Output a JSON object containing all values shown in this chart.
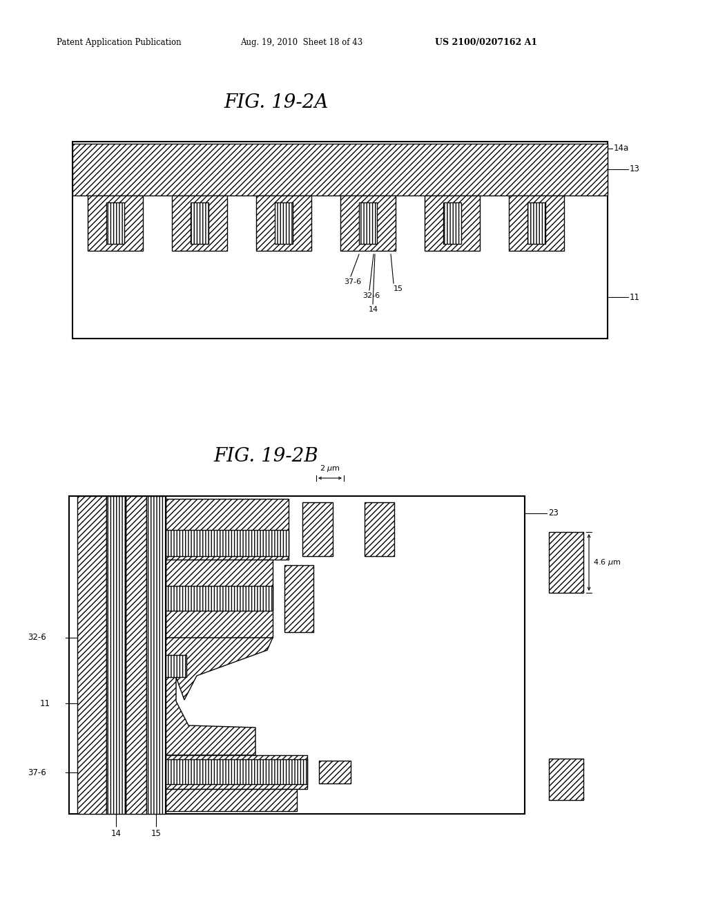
{
  "bg_color": "#ffffff",
  "header_left": "Patent Application Publication",
  "header_mid": "Aug. 19, 2010  Sheet 18 of 43",
  "header_right": "US 2100/0207162 A1",
  "fig1_title": "FIG. 19-2A",
  "fig2_title": "FIG. 19-2B",
  "A_L": 105,
  "A_R": 880,
  "A_T": 205,
  "A_B": 490,
  "B_L": 100,
  "B_R": 760,
  "B_T": 718,
  "B_B": 1178
}
